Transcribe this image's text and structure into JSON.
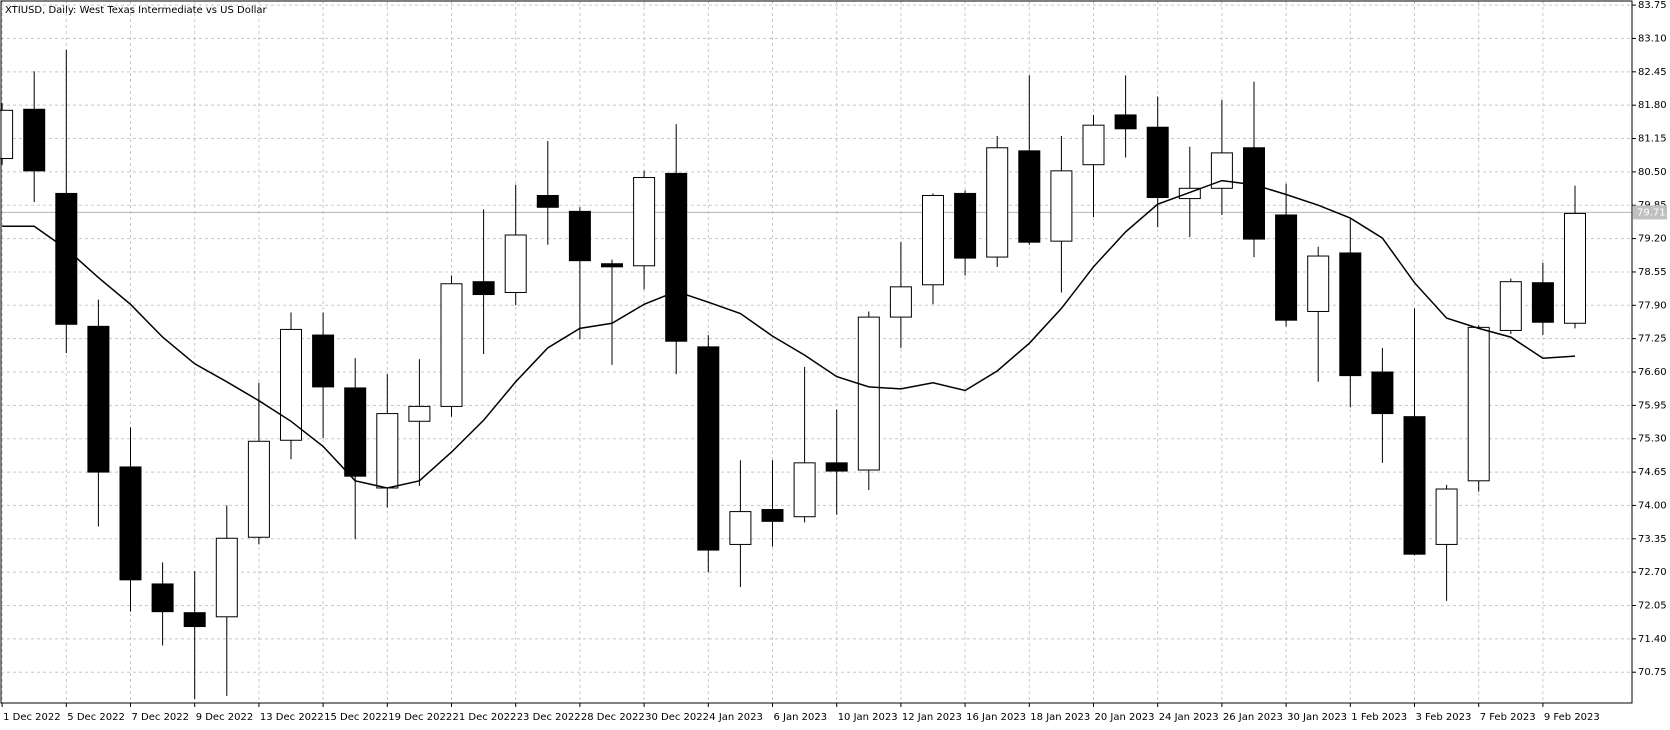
{
  "chart_data": {
    "type": "candlestick",
    "title": "XTIUSD, Daily:  West Texas Intermediate vs US Dollar",
    "categories": [
      "1 Dec 2022",
      null,
      "5 Dec 2022",
      null,
      "7 Dec 2022",
      null,
      "9 Dec 2022",
      null,
      "13 Dec 2022",
      null,
      "15 Dec 2022",
      null,
      "19 Dec 2022",
      null,
      "21 Dec 2022",
      null,
      "23 Dec 2022",
      null,
      "28 Dec 2022",
      null,
      "30 Dec 2022",
      null,
      "4 Jan 2023",
      null,
      "6 Jan 2023",
      null,
      "10 Jan 2023",
      null,
      "12 Jan 2023",
      null,
      "16 Jan 2023",
      null,
      "18 Jan 2023",
      null,
      "20 Jan 2023",
      null,
      "24 Jan 2023",
      null,
      "26 Jan 2023",
      null,
      "30 Jan 2023",
      null,
      "1 Feb 2023",
      null,
      "3 Feb 2023",
      null,
      "7 Feb 2023",
      null,
      "9 Feb 2023",
      null
    ],
    "open": [
      80.76,
      81.72,
      80.08,
      77.49,
      74.75,
      72.47,
      71.91,
      71.83,
      73.38,
      75.27,
      77.32,
      76.29,
      74.34,
      75.64,
      75.93,
      78.36,
      78.15,
      80.04,
      79.73,
      78.71,
      78.67,
      80.47,
      77.09,
      73.24,
      73.92,
      73.78,
      74.83,
      74.69,
      77.67,
      78.3,
      80.08,
      78.84,
      80.91,
      79.15,
      80.64,
      81.61,
      81.37,
      79.98,
      80.18,
      80.97,
      79.66,
      77.78,
      78.92,
      76.6,
      75.73,
      73.24,
      74.48,
      77.41,
      78.34,
      77.55
    ],
    "high": [
      81.84,
      82.46,
      82.88,
      78.01,
      75.52,
      72.89,
      72.72,
      74.0,
      76.39,
      77.76,
      77.76,
      76.87,
      76.56,
      76.85,
      78.48,
      79.77,
      80.25,
      81.1,
      79.81,
      78.79,
      80.52,
      81.43,
      77.32,
      74.88,
      74.88,
      76.7,
      75.87,
      77.78,
      79.13,
      80.08,
      80.14,
      81.2,
      82.38,
      81.2,
      81.61,
      82.38,
      81.97,
      80.99,
      81.9,
      82.26,
      80.27,
      79.04,
      79.58,
      77.07,
      77.84,
      74.4,
      77.51,
      78.42,
      78.73,
      80.23
    ],
    "low": [
      80.64,
      79.91,
      76.97,
      73.59,
      71.93,
      71.27,
      70.23,
      70.29,
      73.24,
      74.9,
      75.31,
      73.34,
      73.96,
      74.38,
      75.73,
      76.95,
      77.9,
      79.08,
      77.24,
      76.74,
      78.21,
      76.56,
      72.7,
      72.41,
      73.2,
      73.67,
      73.82,
      74.3,
      77.07,
      77.92,
      78.48,
      78.65,
      79.08,
      78.15,
      79.62,
      80.78,
      79.42,
      79.23,
      79.66,
      78.84,
      77.49,
      76.41,
      75.91,
      74.83,
      73.03,
      72.14,
      74.27,
      77.34,
      77.32,
      77.45
    ],
    "close": [
      81.7,
      80.52,
      77.53,
      74.65,
      72.55,
      71.93,
      71.64,
      73.36,
      75.25,
      77.43,
      76.31,
      74.57,
      75.79,
      75.93,
      78.32,
      78.11,
      79.27,
      79.81,
      78.77,
      78.65,
      80.39,
      77.2,
      73.13,
      73.88,
      73.69,
      74.83,
      74.67,
      77.67,
      78.26,
      80.04,
      78.82,
      80.97,
      79.13,
      80.52,
      81.41,
      81.34,
      80.0,
      80.18,
      80.87,
      79.19,
      77.61,
      78.86,
      76.53,
      75.79,
      73.05,
      74.32,
      77.47,
      78.36,
      77.57,
      79.69
    ],
    "bull_color": "#ffffff",
    "bear_color": "#000000",
    "overlay": {
      "type": "line",
      "color": "#000000",
      "values": [
        79.44,
        79.44,
        79.0,
        78.44,
        77.92,
        77.28,
        76.76,
        76.41,
        76.04,
        75.64,
        75.15,
        74.48,
        74.34,
        74.48,
        75.04,
        75.66,
        76.41,
        77.07,
        77.45,
        77.55,
        77.92,
        78.17,
        77.96,
        77.74,
        77.3,
        76.93,
        76.51,
        76.31,
        76.27,
        76.39,
        76.24,
        76.62,
        77.16,
        77.84,
        78.65,
        79.33,
        79.87,
        80.1,
        80.33,
        80.25,
        80.06,
        79.85,
        79.6,
        79.21,
        78.34,
        77.65,
        77.45,
        77.28,
        76.87,
        76.91
      ]
    },
    "current_price": 79.71,
    "ylim": [
      70.15,
      83.83
    ],
    "yticks": [
      83.75,
      {
        "value": 83.1,
        "label": "83.10"
      },
      82.45,
      {
        "value": 81.8,
        "label": "81.80"
      },
      81.15,
      {
        "value": 80.5,
        "label": "80.50"
      },
      79.85,
      {
        "value": 79.2,
        "label": "79.20"
      },
      78.55,
      {
        "value": 77.9,
        "label": "77.90"
      },
      77.25,
      {
        "value": 76.6,
        "label": "76.60"
      },
      75.95,
      {
        "value": 75.3,
        "label": "75.30"
      },
      74.65,
      {
        "value": 74.0,
        "label": "74.00"
      },
      73.35,
      {
        "value": 72.7,
        "label": "72.70"
      },
      72.05,
      {
        "value": 71.4,
        "label": "71.40"
      },
      70.75
    ],
    "grid": true
  }
}
